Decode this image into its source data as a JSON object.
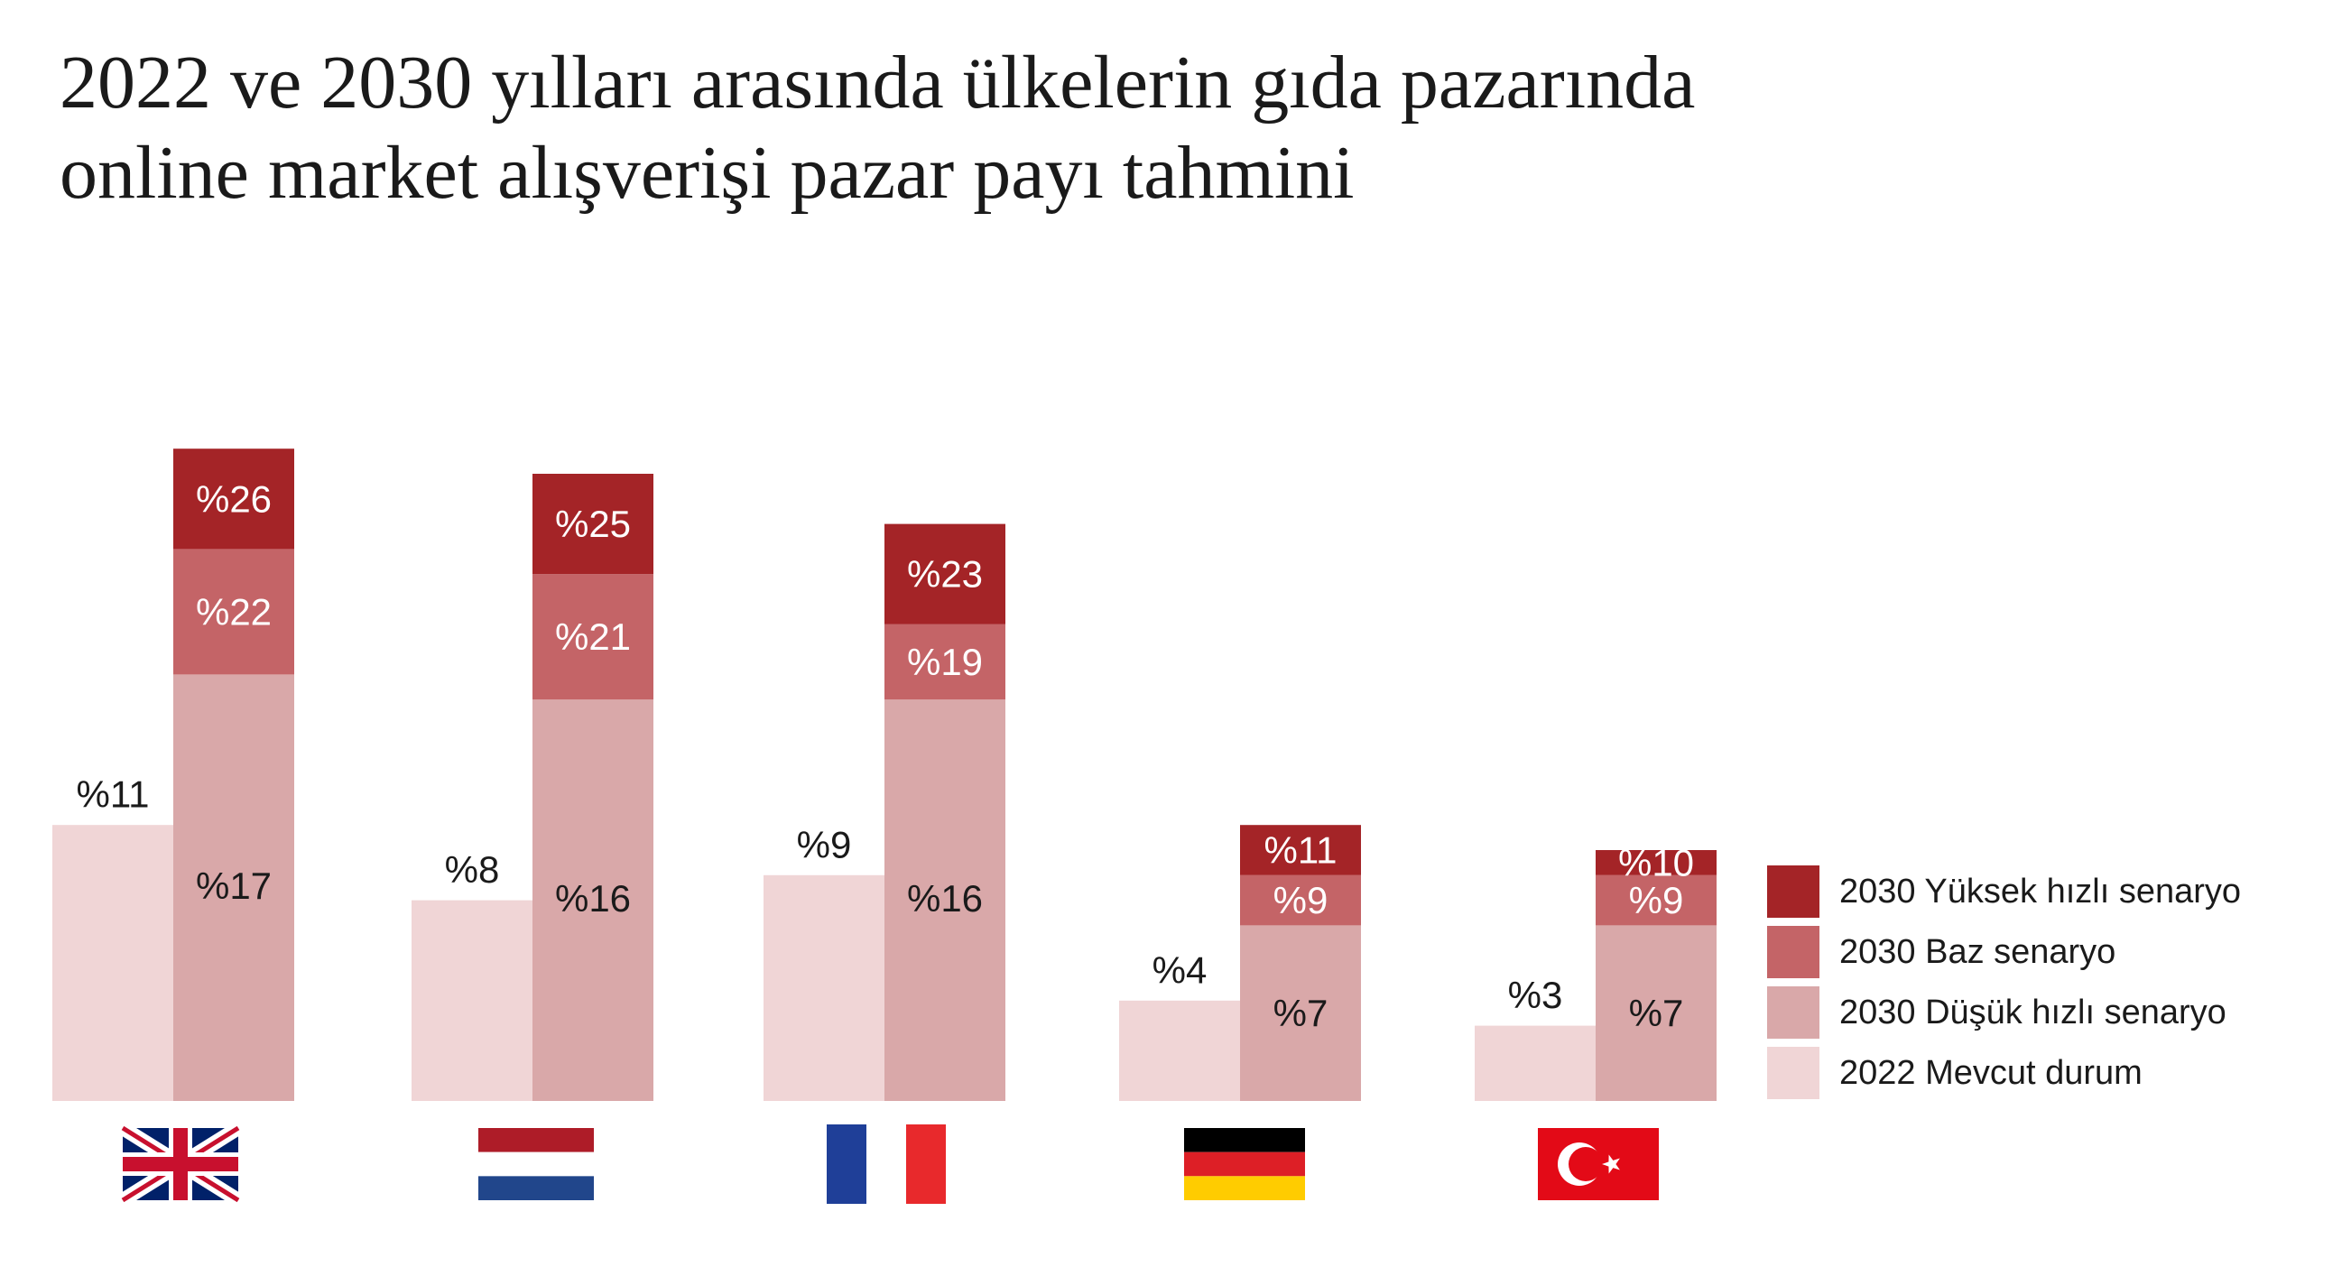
{
  "title_line1": "2022 ve 2030 yılları arasında ülkelerin gıda pazarında",
  "title_line2": "online market alışverişi pazar payı tahmini",
  "colors": {
    "y2022": "#f0d5d6",
    "low": "#d9a8a9",
    "base": "#c46467",
    "high": "#a42427",
    "text_dark": "#1a1a1a",
    "text_light": "#ffffff"
  },
  "chart_data": {
    "type": "bar",
    "categories": [
      "United Kingdom",
      "Netherlands",
      "France",
      "Germany",
      "Turkey"
    ],
    "flags": [
      "uk-flag-icon",
      "netherlands-flag-icon",
      "france-flag-icon",
      "germany-flag-icon",
      "turkey-flag-icon"
    ],
    "series": [
      {
        "name": "2022 Mevcut durum",
        "values": [
          11,
          8,
          9,
          4,
          3
        ],
        "labels": [
          "%11",
          "%8",
          "%9",
          "%4",
          "%3"
        ]
      },
      {
        "name": "2030 Düşük hızlı senaryo",
        "values": [
          17,
          16,
          16,
          7,
          7
        ],
        "labels": [
          "%17",
          "%16",
          "%16",
          "%7",
          "%7"
        ]
      },
      {
        "name": "2030 Baz senaryo",
        "values": [
          22,
          21,
          19,
          9,
          9
        ],
        "labels": [
          "%22",
          "%21",
          "%19",
          "%9",
          "%9"
        ]
      },
      {
        "name": "2030 Yüksek hızlı senaryo",
        "values": [
          26,
          25,
          23,
          11,
          10
        ],
        "labels": [
          "%26",
          "%25",
          "%23",
          "%11",
          "%10"
        ]
      }
    ],
    "legend": [
      {
        "label": "2030 Yüksek hızlı senaryo",
        "color": "#a42427"
      },
      {
        "label": "2030 Baz senaryo",
        "color": "#c46467"
      },
      {
        "label": "2030 Düşük hızlı senaryo",
        "color": "#d9a8a9"
      },
      {
        "label": "2022 Mevcut durum",
        "color": "#f0d5d6"
      }
    ],
    "legend_position": "right",
    "grid": false,
    "ylim": [
      0,
      26
    ]
  }
}
